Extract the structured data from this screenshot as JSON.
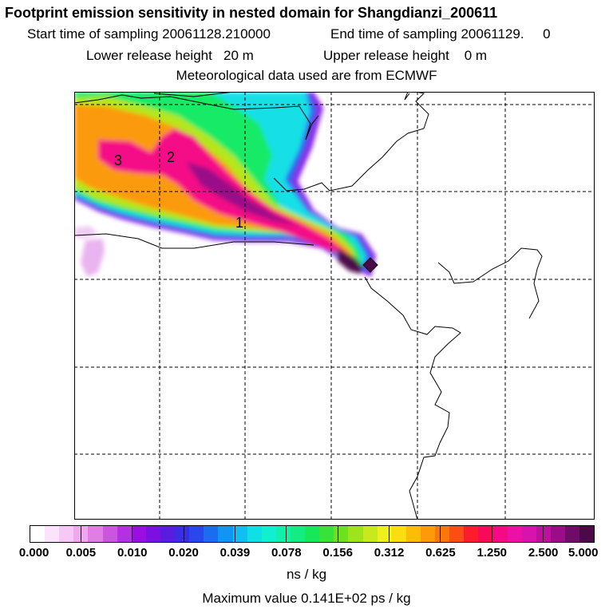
{
  "header": {
    "title": "Footprint emission sensitivity in nested domain for Shangdianzi_200611",
    "start_time": "Start time of sampling 20061128.210000",
    "end_time": "End time of sampling 20061129.     0",
    "lower_height": "Lower release height   20 m",
    "upper_height": "Upper release height    0 m",
    "met_data": "Meteorological data used are from ECMWF"
  },
  "map": {
    "day_labels": [
      "3",
      "2",
      "1"
    ],
    "receptor_marker": "diamond"
  },
  "colorbar": {
    "ticks": [
      "0.000",
      "0.005",
      "0.010",
      "0.020",
      "0.039",
      "0.078",
      "0.156",
      "0.312",
      "0.625",
      "1.250",
      "2.500",
      "5.000"
    ],
    "unit": "ns / kg",
    "colors": [
      "#ffffff",
      "#fbe4fb",
      "#f6c8f6",
      "#f0a6f0",
      "#e27de6",
      "#cc55e0",
      "#b430e0",
      "#9a0ee0",
      "#7c10e0",
      "#5a1ce0",
      "#3c2ce6",
      "#2848ec",
      "#1a6cf0",
      "#1096f2",
      "#10bff2",
      "#0ee0e6",
      "#10f0d0",
      "#10f0aa",
      "#12ec80",
      "#16e858",
      "#38e23a",
      "#6ae21e",
      "#9ee41a",
      "#c8ea1c",
      "#eef01e",
      "#fcde0e",
      "#fcbc08",
      "#fc9a0a",
      "#fc760e",
      "#fc4e14",
      "#fc1c2c",
      "#f80a5a",
      "#f40a86",
      "#ec10a6",
      "#d812ae",
      "#bc10a0",
      "#9a0c88",
      "#720a6a",
      "#4c0848"
    ]
  },
  "footer": {
    "max_value": "Maximum value  0.141E+02 ps / kg"
  }
}
